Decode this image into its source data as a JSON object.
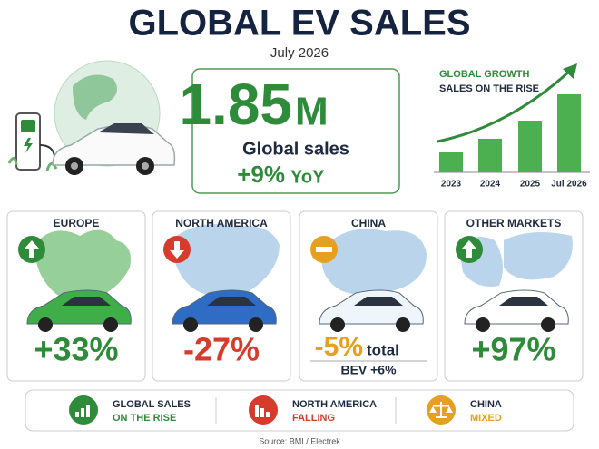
{
  "header": {
    "title": "GLOBAL EV SALES",
    "subtitle": "July 2026"
  },
  "highlight": {
    "number": "1.85",
    "unit": "M",
    "label": "Global sales",
    "change": "+9%",
    "change_note": "YoY"
  },
  "chart_data": {
    "type": "bar",
    "title": "GLOBAL GROWTH",
    "subtitle": "SALES ON THE RISE",
    "categories": [
      "2023",
      "2024",
      "2025",
      "Jul 2026"
    ],
    "values": [
      22,
      37,
      57,
      86
    ],
    "ylim": [
      0,
      100
    ],
    "color": "#4caf50"
  },
  "regions": [
    {
      "name": "EUROPE",
      "change": "+33%",
      "trend": "up",
      "color": "#2e8b3a",
      "car": "#3fae48",
      "map": "#7cc37f"
    },
    {
      "name": "NORTH AMERICA",
      "change": "-27%",
      "trend": "down",
      "color": "#d63b2b",
      "car": "#2f6cc4",
      "map": "#a9cbe6"
    },
    {
      "name": "CHINA",
      "change": "-5%",
      "note": "total",
      "sub": "BEV +6%",
      "trend": "flat",
      "color": "#e5a020",
      "car": "#eef6fb",
      "map": "#a9cbe6"
    },
    {
      "name": "OTHER MARKETS",
      "change": "+97%",
      "trend": "up",
      "color": "#2e8b3a",
      "car": "#ffffff",
      "map": "#a9cbe6"
    }
  ],
  "summary": [
    {
      "line1": "GLOBAL SALES",
      "line2": "ON THE RISE",
      "color": "#2e8b3a",
      "icon": "chart-up"
    },
    {
      "line1": "NORTH AMERICA",
      "line2": "FALLING",
      "color": "#d63b2b",
      "icon": "chart-down"
    },
    {
      "line1": "CHINA",
      "line2": "MIXED",
      "color": "#e5a020",
      "icon": "scale"
    }
  ],
  "source": "Source: BMI / Electrek"
}
